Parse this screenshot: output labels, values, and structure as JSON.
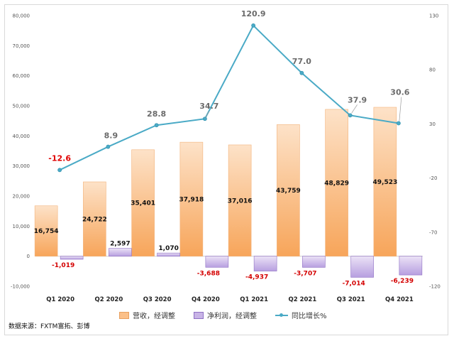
{
  "chart_data": {
    "type": "bar+line",
    "categories": [
      "Q1 2020",
      "Q2 2020",
      "Q3 2020",
      "Q4 2020",
      "Q1 2021",
      "Q2 2021",
      "Q3 2021",
      "Q4 2021"
    ],
    "series": [
      {
        "name": "营收，经调整",
        "type": "bar",
        "axis": "left",
        "values": [
          16754,
          24722,
          35401,
          37918,
          37016,
          43759,
          48829,
          49523
        ],
        "labels": [
          "16,754",
          "24,722",
          "35,401",
          "37,918",
          "37,016",
          "43,759",
          "48,829",
          "49,523"
        ]
      },
      {
        "name": "净利润，经调整",
        "type": "bar",
        "axis": "left",
        "values": [
          -1019,
          2597,
          1070,
          -3688,
          -4937,
          -3707,
          -7014,
          -6239
        ],
        "labels": [
          "-1,019",
          "2,597",
          "1,070",
          "-3,688",
          "-4,937",
          "-3,707",
          "-7,014",
          "-6,239"
        ]
      },
      {
        "name": "同比增长%",
        "type": "line",
        "axis": "right",
        "values": [
          -12.6,
          8.9,
          28.8,
          34.7,
          120.9,
          77.0,
          37.9,
          30.6
        ],
        "labels": [
          "-12.6",
          "8.9",
          "28.8",
          "34.7",
          "120.9",
          "77.0",
          "37.9",
          "30.6"
        ]
      }
    ],
    "left_axis": {
      "ylim": [
        -10000,
        80000
      ],
      "tick_values": [
        -10000,
        0,
        10000,
        20000,
        30000,
        40000,
        50000,
        60000,
        70000,
        80000
      ],
      "tick_labels": [
        "-10,000",
        "0",
        "10,000",
        "20,000",
        "30,000",
        "40,000",
        "50,000",
        "60,000",
        "70,000",
        "80,000"
      ]
    },
    "right_axis": {
      "ylim": [
        -120,
        130
      ],
      "tick_values": [
        -120,
        -70,
        -20,
        30,
        80,
        130
      ],
      "tick_labels": [
        "-120",
        "-70",
        "-20",
        "30",
        "80",
        "130"
      ]
    },
    "legend_position": "bottom",
    "grid": false,
    "colors": {
      "revenue": "#fbc089",
      "net_income": "#c8b4e6",
      "growth": "#4aaac6",
      "negative_label": "#d40000"
    }
  },
  "source_text": "数据来源：FXTM富拓、彭博"
}
